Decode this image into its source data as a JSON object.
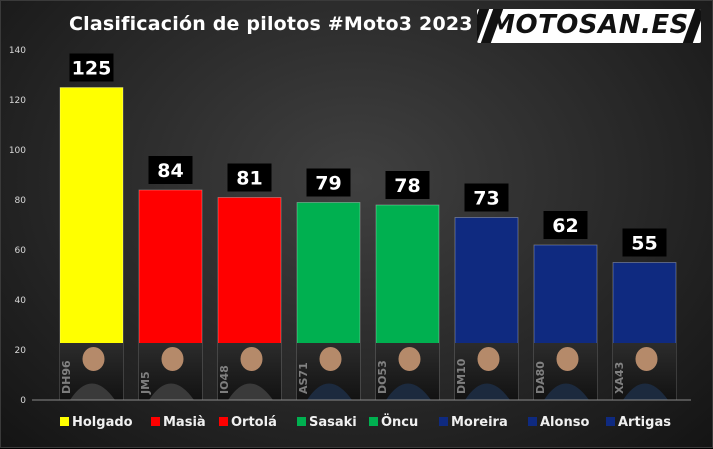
{
  "header": {
    "title": "Clasificación de pilotos #Moto3 2023",
    "logo_text": "MOTOSAN.ES"
  },
  "chart_data": {
    "type": "bar",
    "title": "Clasificación de pilotos #Moto3 2023",
    "categories": [
      "Holgado",
      "Masià",
      "Ortolá",
      "Sasaki",
      "Öncu",
      "Moreira",
      "Alonso",
      "Artigas"
    ],
    "values": [
      125,
      84,
      81,
      79,
      78,
      73,
      62,
      55
    ],
    "rider_numbers": [
      "DH96",
      "JM5",
      "IO48",
      "AS71",
      "DO53",
      "DM10",
      "DA80",
      "XA43"
    ],
    "colors": [
      "#ffff00",
      "#ff0000",
      "#ff0000",
      "#00b050",
      "#00b050",
      "#0f2a80",
      "#0f2a80",
      "#0f2a80"
    ],
    "ylim": [
      0,
      140
    ],
    "yticks": [
      0,
      20,
      40,
      60,
      80,
      100,
      120,
      140
    ],
    "grid": false,
    "legend_position": "bottom",
    "xlabel": "",
    "ylabel": ""
  }
}
